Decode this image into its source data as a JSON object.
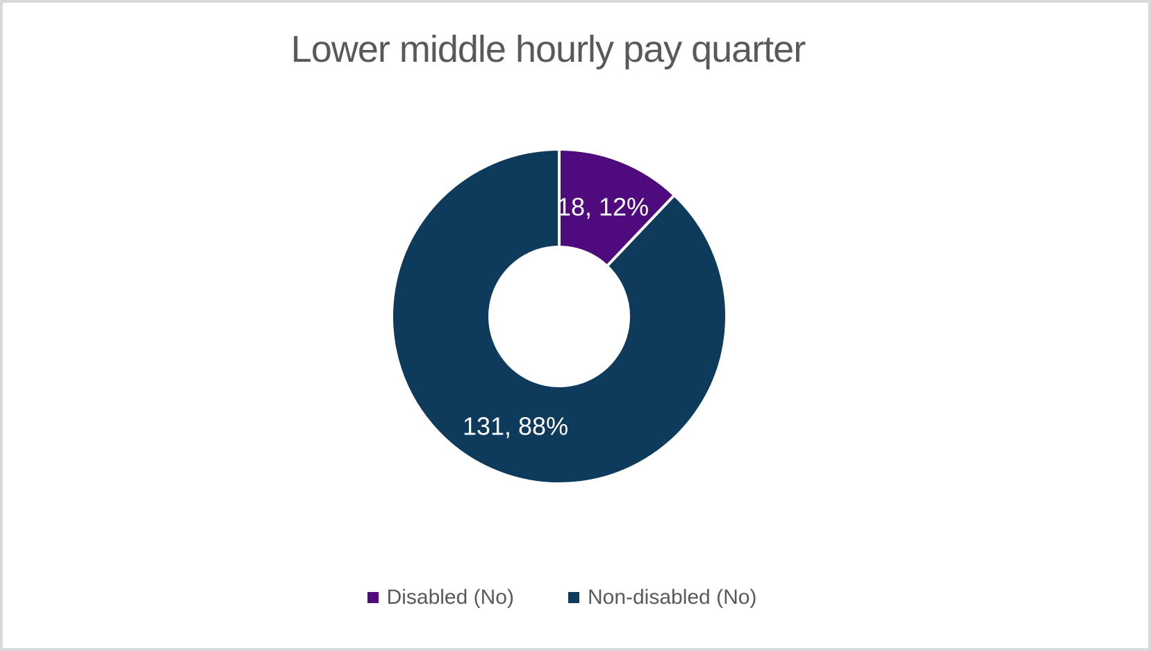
{
  "page": {
    "background": "#ffffff",
    "frame_border_color": "#d9d9d9"
  },
  "chart_data": {
    "type": "pie",
    "subtype": "donut",
    "title": "Lower middle hourly pay quarter",
    "title_color": "#595959",
    "categories": [
      "Disabled (No)",
      "Non-disabled (No)"
    ],
    "values": [
      18,
      131
    ],
    "percentages": [
      12,
      88
    ],
    "data_labels": [
      "18, 12%",
      "131, 88%"
    ],
    "colors": [
      "#4f0b7e",
      "#0e3a5c"
    ],
    "data_label_color": "#ffffff",
    "slice_gap_color": "#ffffff",
    "hole_ratio": 0.415,
    "legend_position": "bottom",
    "legend_text_color": "#595959",
    "grid": false
  }
}
